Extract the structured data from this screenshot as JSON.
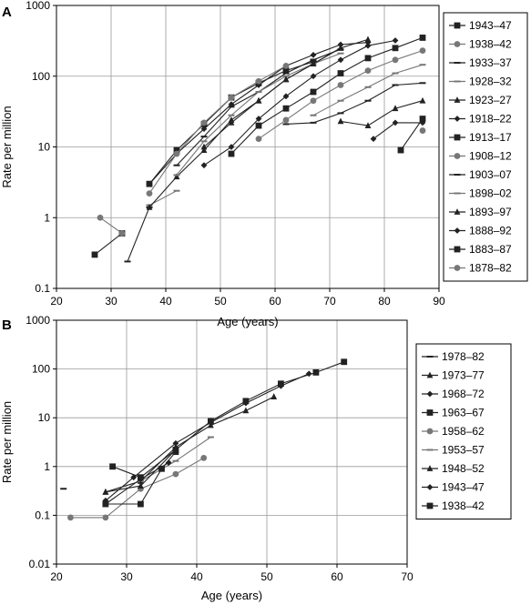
{
  "chart_data": [
    {
      "panel_label": "A",
      "type": "line",
      "xlabel": "Age (years)",
      "ylabel": "Rate per million",
      "xlim": [
        20,
        90
      ],
      "ylim": [
        0.1,
        1000
      ],
      "yscale": "log",
      "grid": true,
      "legend_position": "right",
      "x_ticks": [
        "20",
        "30",
        "40",
        "50",
        "60",
        "70",
        "80",
        "90"
      ],
      "y_ticks": [
        "0.1",
        "1",
        "10",
        "100",
        "1000"
      ],
      "series": [
        {
          "name": "1943–47",
          "marker": "square",
          "color": "#222222",
          "x": [
            27,
            32
          ],
          "y": [
            0.3,
            0.6
          ]
        },
        {
          "name": "1938–42",
          "marker": "circle",
          "color": "#777777",
          "x": [
            28,
            32
          ],
          "y": [
            1.0,
            0.6
          ]
        },
        {
          "name": "1933–37",
          "marker": "dash",
          "color": "#222222",
          "x": [
            33,
            37
          ],
          "y": [
            0.24,
            1.4
          ]
        },
        {
          "name": "1928–32",
          "marker": "dash",
          "color": "#777777",
          "x": [
            37,
            42
          ],
          "y": [
            1.5,
            2.4
          ]
        },
        {
          "name": "1923–27",
          "marker": "triangle",
          "color": "#222222",
          "x": [
            37,
            42,
            47,
            52,
            57,
            62,
            67,
            72
          ],
          "y": [
            1.4,
            3.8,
            9,
            24,
            45,
            90,
            150,
            250
          ]
        },
        {
          "name": "1918–22",
          "marker": "diamond",
          "color": "#222222",
          "x": [
            37,
            42,
            47,
            52,
            57,
            62,
            67,
            72,
            77
          ],
          "y": [
            3,
            8,
            18,
            40,
            75,
            140,
            200,
            280,
            300
          ]
        },
        {
          "name": "1913–17",
          "marker": "square",
          "color": "#222222",
          "x": [
            37,
            42,
            47,
            52,
            57,
            62,
            67
          ],
          "y": [
            3,
            9,
            21,
            50,
            80,
            120,
            160
          ]
        },
        {
          "name": "1908–12",
          "marker": "circle",
          "color": "#777777",
          "x": [
            37,
            42,
            47,
            52,
            57,
            62
          ],
          "y": [
            2.2,
            8,
            22,
            50,
            85,
            140
          ]
        },
        {
          "name": "1903–07",
          "marker": "dash",
          "color": "#222222",
          "x": [
            42,
            47,
            52,
            57,
            62,
            67,
            72
          ],
          "y": [
            5.5,
            14,
            37,
            60,
            110,
            170,
            240
          ]
        },
        {
          "name": "1898–02",
          "marker": "dash",
          "color": "#777777",
          "x": [
            42,
            47,
            52,
            57,
            62,
            67,
            72
          ],
          "y": [
            4,
            12,
            28,
            60,
            100,
            150,
            210
          ]
        },
        {
          "name": "1893–97",
          "marker": "triangle",
          "color": "#222222",
          "x": [
            47,
            52,
            57,
            62,
            67,
            72,
            77
          ],
          "y": [
            10,
            22,
            45,
            90,
            150,
            250,
            330
          ]
        },
        {
          "name": "1888–92",
          "marker": "diamond",
          "color": "#222222",
          "x": [
            47,
            52,
            57,
            62,
            67,
            72,
            77,
            82
          ],
          "y": [
            5.5,
            10,
            25,
            52,
            100,
            170,
            270,
            320
          ]
        },
        {
          "name": "1883–87",
          "marker": "square",
          "color": "#222222",
          "x": [
            52,
            57,
            62,
            67,
            72,
            77,
            82,
            87
          ],
          "y": [
            8,
            20,
            35,
            60,
            110,
            180,
            250,
            350
          ]
        },
        {
          "name": "1878–82",
          "marker": "circle",
          "color": "#777777",
          "x": [
            57,
            62,
            67,
            72,
            77,
            82,
            87
          ],
          "y": [
            13,
            24,
            45,
            75,
            120,
            170,
            230
          ]
        },
        {
          "name": "",
          "marker": "triangle",
          "color": "#222222",
          "x": [
            72,
            77,
            82,
            87
          ],
          "y": [
            23,
            20,
            35,
            45
          ]
        },
        {
          "name": "",
          "marker": "diamond",
          "color": "#222222",
          "x": [
            78,
            82,
            87
          ],
          "y": [
            13,
            22,
            22
          ]
        },
        {
          "name": "",
          "marker": "square",
          "color": "#222222",
          "x": [
            83,
            87
          ],
          "y": [
            9,
            25
          ]
        },
        {
          "name": "",
          "marker": "circle",
          "color": "#777777",
          "x": [
            87
          ],
          "y": [
            17
          ]
        },
        {
          "name": "",
          "marker": "dash",
          "color": "#222222",
          "x": [
            62,
            67,
            72,
            77,
            82,
            87
          ],
          "y": [
            21,
            22,
            30,
            45,
            75,
            80
          ]
        },
        {
          "name": "",
          "marker": "dash",
          "color": "#777777",
          "x": [
            67,
            72,
            77,
            82,
            87
          ],
          "y": [
            28,
            45,
            70,
            110,
            145
          ]
        }
      ]
    },
    {
      "panel_label": "B",
      "type": "line",
      "xlabel": "Age (years)",
      "ylabel": "Rate per million",
      "xlim": [
        20,
        70
      ],
      "ylim": [
        0.01,
        1000
      ],
      "yscale": "log",
      "grid": true,
      "legend_position": "right",
      "x_ticks": [
        "20",
        "30",
        "40",
        "50",
        "60",
        "70"
      ],
      "y_ticks": [
        "0.01",
        "0.1",
        "1",
        "10",
        "100",
        "1000"
      ],
      "series": [
        {
          "name": "1978–82",
          "marker": "dash",
          "color": "#222222",
          "x": [
            21
          ],
          "y": [
            0.35
          ]
        },
        {
          "name": "1973–77",
          "marker": "triangle",
          "color": "#222222",
          "x": [
            27,
            32,
            37,
            42,
            47,
            51
          ],
          "y": [
            0.3,
            0.5,
            2.5,
            7,
            14,
            27
          ]
        },
        {
          "name": "1968–72",
          "marker": "diamond",
          "color": "#222222",
          "x": [
            27,
            31,
            37,
            42,
            47,
            52,
            56
          ],
          "y": [
            0.2,
            0.6,
            3,
            8,
            20,
            45,
            80
          ]
        },
        {
          "name": "1963–67",
          "marker": "square",
          "color": "#222222",
          "x": [
            28,
            32,
            37,
            42,
            47,
            52,
            57,
            61
          ],
          "y": [
            1.0,
            0.6,
            2.2,
            8.5,
            22,
            50,
            85,
            140
          ]
        },
        {
          "name": "1958–62",
          "marker": "circle",
          "color": "#777777",
          "x": [
            22,
            27,
            32,
            37,
            41
          ],
          "y": [
            0.09,
            0.09,
            0.35,
            0.7,
            1.5
          ]
        },
        {
          "name": "1953–57",
          "marker": "dash",
          "color": "#777777",
          "x": [
            32,
            37,
            42
          ],
          "y": [
            0.5,
            1.3,
            4
          ]
        },
        {
          "name": "1948–52",
          "marker": "triangle",
          "color": "#222222",
          "x": [
            27,
            32,
            37
          ],
          "y": [
            0.3,
            0.4,
            2.2
          ]
        },
        {
          "name": "1943–47",
          "marker": "diamond",
          "color": "#222222",
          "x": [
            27,
            32,
            36
          ],
          "y": [
            0.17,
            0.55,
            1.2
          ]
        },
        {
          "name": "1938–42",
          "marker": "square",
          "color": "#222222",
          "x": [
            27,
            32,
            35,
            37
          ],
          "y": [
            0.17,
            0.17,
            0.9,
            2
          ]
        }
      ]
    }
  ]
}
